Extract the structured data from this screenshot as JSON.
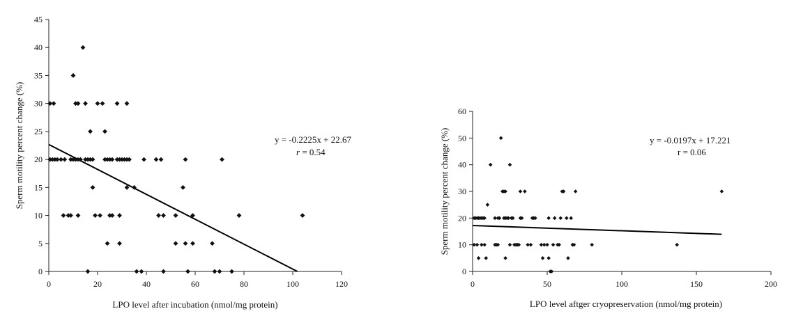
{
  "chart_data": [
    {
      "type": "scatter",
      "xlabel": "LPO level after incubation (nmol/mg protein)",
      "ylabel": "Sperm motility percent change (%)",
      "xlim": [
        0,
        120
      ],
      "ylim": [
        0,
        45
      ],
      "xticks": [
        "0",
        "20",
        "40",
        "60",
        "80",
        "100",
        "120"
      ],
      "yticks": [
        "0",
        "5",
        "10",
        "15",
        "20",
        "25",
        "30",
        "35",
        "40",
        "45"
      ],
      "trendline": {
        "slope": -0.2225,
        "intercept": 22.67,
        "x_range": [
          0,
          101.9
        ]
      },
      "equation": "y = -0.2225x + 22.67",
      "r_prefix": "r",
      "r_value": " = 0.54",
      "points": [
        [
          0.5,
          30
        ],
        [
          2,
          30
        ],
        [
          0.5,
          20
        ],
        [
          1.5,
          20
        ],
        [
          2.5,
          20
        ],
        [
          3.5,
          20
        ],
        [
          5,
          20
        ],
        [
          6.5,
          20
        ],
        [
          6,
          10
        ],
        [
          8,
          10
        ],
        [
          9,
          10
        ],
        [
          9,
          20
        ],
        [
          10,
          20
        ],
        [
          11,
          20
        ],
        [
          12,
          20
        ],
        [
          13,
          20
        ],
        [
          10,
          35
        ],
        [
          11,
          30
        ],
        [
          12,
          30
        ],
        [
          14,
          40
        ],
        [
          15,
          30
        ],
        [
          15,
          20
        ],
        [
          16,
          20
        ],
        [
          17,
          20
        ],
        [
          12,
          10
        ],
        [
          16,
          0
        ],
        [
          17,
          25
        ],
        [
          18,
          20
        ],
        [
          18,
          15
        ],
        [
          19,
          10
        ],
        [
          20,
          30
        ],
        [
          21,
          10
        ],
        [
          22,
          30
        ],
        [
          23,
          25
        ],
        [
          23,
          20
        ],
        [
          24,
          20
        ],
        [
          24,
          5
        ],
        [
          25,
          20
        ],
        [
          26,
          20
        ],
        [
          25,
          10
        ],
        [
          26,
          10
        ],
        [
          28,
          30
        ],
        [
          28,
          20
        ],
        [
          29,
          20
        ],
        [
          29,
          10
        ],
        [
          30,
          20
        ],
        [
          31,
          20
        ],
        [
          29,
          5
        ],
        [
          32,
          30
        ],
        [
          32,
          20
        ],
        [
          33,
          20
        ],
        [
          32,
          15
        ],
        [
          35,
          15
        ],
        [
          36,
          0
        ],
        [
          38,
          0
        ],
        [
          39,
          20
        ],
        [
          44,
          20
        ],
        [
          45,
          10
        ],
        [
          46,
          20
        ],
        [
          47,
          10
        ],
        [
          47,
          0
        ],
        [
          52,
          10
        ],
        [
          52,
          5
        ],
        [
          55,
          15
        ],
        [
          56,
          20
        ],
        [
          56,
          5
        ],
        [
          57,
          0
        ],
        [
          59,
          10
        ],
        [
          59,
          5
        ],
        [
          67,
          5
        ],
        [
          68,
          0
        ],
        [
          70,
          0
        ],
        [
          71,
          20
        ],
        [
          75,
          0
        ],
        [
          78,
          10
        ],
        [
          104,
          10
        ]
      ]
    },
    {
      "type": "scatter",
      "xlabel": "LPO level aftger cryopreservation (nmol/mg protein)",
      "ylabel": "Sperm motility percent change (%)",
      "xlim": [
        0,
        200
      ],
      "ylim": [
        0,
        60
      ],
      "xticks": [
        "0",
        "50",
        "100",
        "150",
        "200"
      ],
      "yticks": [
        "0",
        "10",
        "20",
        "30",
        "40",
        "50",
        "60"
      ],
      "trendline": {
        "slope": -0.0197,
        "intercept": 17.221,
        "x_range": [
          0,
          167
        ]
      },
      "equation": "y = -0.0197x + 17.221",
      "r_prefix": "r",
      "r_value": " = 0.06",
      "points": [
        [
          1,
          20
        ],
        [
          2,
          20
        ],
        [
          3,
          20
        ],
        [
          4,
          20
        ],
        [
          5,
          20
        ],
        [
          6,
          20
        ],
        [
          7,
          20
        ],
        [
          8,
          20
        ],
        [
          1,
          10
        ],
        [
          3,
          10
        ],
        [
          4,
          5
        ],
        [
          6,
          10
        ],
        [
          8,
          10
        ],
        [
          9,
          5
        ],
        [
          10,
          25
        ],
        [
          12,
          40
        ],
        [
          15,
          10
        ],
        [
          16,
          10
        ],
        [
          17,
          10
        ],
        [
          15,
          20
        ],
        [
          17,
          20
        ],
        [
          18,
          20
        ],
        [
          19,
          50
        ],
        [
          20,
          30
        ],
        [
          21,
          30
        ],
        [
          22,
          30
        ],
        [
          21,
          20
        ],
        [
          22,
          20
        ],
        [
          23,
          20
        ],
        [
          22,
          5
        ],
        [
          24,
          20
        ],
        [
          25,
          40
        ],
        [
          25,
          10
        ],
        [
          26,
          20
        ],
        [
          27,
          20
        ],
        [
          28,
          10
        ],
        [
          29,
          10
        ],
        [
          30,
          10
        ],
        [
          31,
          10
        ],
        [
          32,
          30
        ],
        [
          32,
          20
        ],
        [
          33,
          20
        ],
        [
          35,
          30
        ],
        [
          37,
          10
        ],
        [
          39,
          10
        ],
        [
          40,
          20
        ],
        [
          41,
          20
        ],
        [
          42,
          20
        ],
        [
          46,
          10
        ],
        [
          47,
          5
        ],
        [
          48,
          10
        ],
        [
          50,
          10
        ],
        [
          51,
          20
        ],
        [
          51,
          5
        ],
        [
          52,
          0
        ],
        [
          53,
          0
        ],
        [
          54,
          10
        ],
        [
          55,
          20
        ],
        [
          57,
          10
        ],
        [
          58,
          10
        ],
        [
          59,
          20
        ],
        [
          60,
          30
        ],
        [
          61,
          30
        ],
        [
          63,
          20
        ],
        [
          64,
          5
        ],
        [
          66,
          20
        ],
        [
          67,
          10
        ],
        [
          68,
          10
        ],
        [
          69,
          30
        ],
        [
          80,
          10
        ],
        [
          137,
          10
        ],
        [
          167,
          30
        ]
      ]
    }
  ]
}
